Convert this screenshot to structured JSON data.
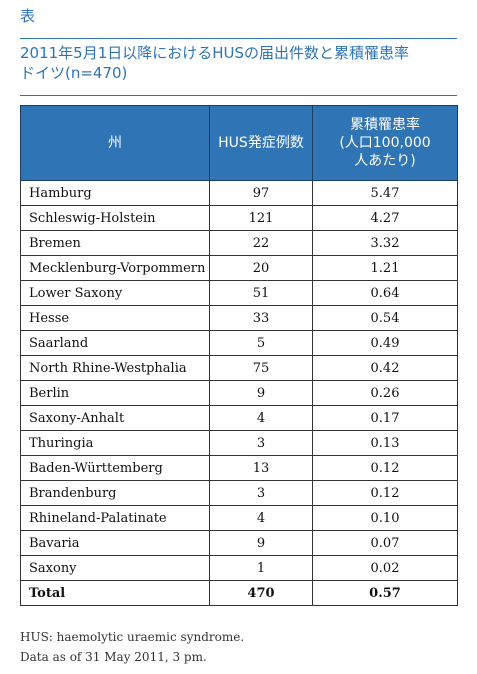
{
  "header": {
    "label": "表",
    "title_line1": "2011年5月1日以降におけるHUSの届出件数と累積罹患率",
    "title_line2": "ドイツ(n=470)"
  },
  "table": {
    "columns": {
      "state": "州",
      "cases": "HUS発症例数",
      "incidence": "累積罹患率\n(人口100,000\n人あたり)"
    },
    "rows": [
      {
        "state": "Hamburg",
        "cases": "97",
        "incidence": "5.47"
      },
      {
        "state": "Schleswig-Holstein",
        "cases": "121",
        "incidence": "4.27"
      },
      {
        "state": "Bremen",
        "cases": "22",
        "incidence": "3.32"
      },
      {
        "state": "Mecklenburg-Vorpommern",
        "cases": "20",
        "incidence": "1.21"
      },
      {
        "state": "Lower Saxony",
        "cases": "51",
        "incidence": "0.64"
      },
      {
        "state": "Hesse",
        "cases": "33",
        "incidence": "0.54"
      },
      {
        "state": "Saarland",
        "cases": "5",
        "incidence": "0.49"
      },
      {
        "state": "North Rhine-Westphalia",
        "cases": "75",
        "incidence": "0.42"
      },
      {
        "state": "Berlin",
        "cases": "9",
        "incidence": "0.26"
      },
      {
        "state": "Saxony-Anhalt",
        "cases": "4",
        "incidence": "0.17"
      },
      {
        "state": "Thuringia",
        "cases": "3",
        "incidence": "0.13"
      },
      {
        "state": "Baden-Württemberg",
        "cases": "13",
        "incidence": "0.12"
      },
      {
        "state": "Brandenburg",
        "cases": "3",
        "incidence": "0.12"
      },
      {
        "state": "Rhineland-Palatinate",
        "cases": "4",
        "incidence": "0.10"
      },
      {
        "state": "Bavaria",
        "cases": "9",
        "incidence": "0.07"
      },
      {
        "state": "Saxony",
        "cases": "1",
        "incidence": "0.02"
      }
    ],
    "total": {
      "state": "Total",
      "cases": "470",
      "incidence": "0.57"
    }
  },
  "footnotes": [
    "HUS: haemolytic uraemic syndrome.",
    "Data as of 31 May 2011, 3 pm."
  ],
  "colors": {
    "accent": "#2f74b5",
    "header_text": "#ffffff"
  }
}
